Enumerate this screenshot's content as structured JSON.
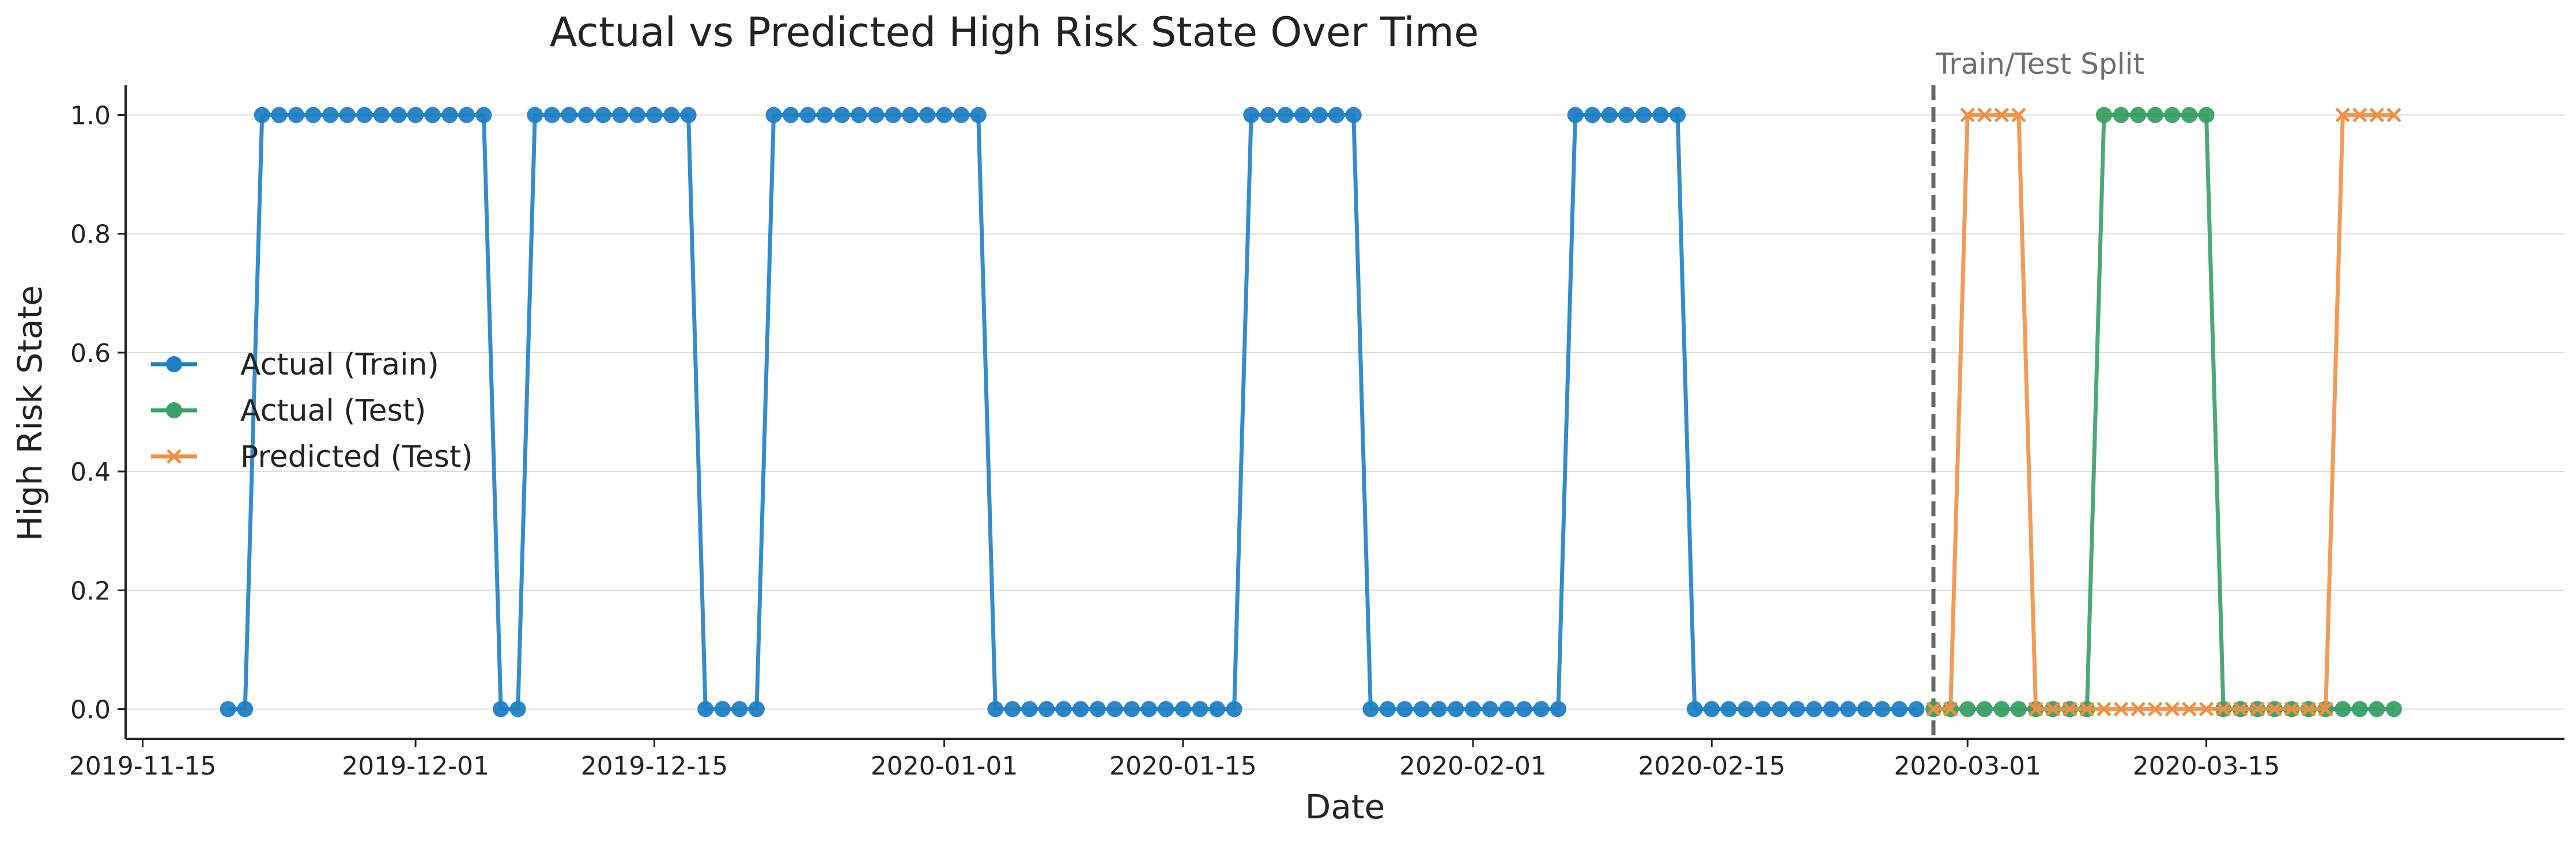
{
  "chart_data": {
    "type": "line",
    "title": "Actual vs Predicted High Risk State Over Time",
    "xlabel": "Date",
    "ylabel": "High Risk State",
    "xlim": [
      "2019-11-14",
      "2020-04-05"
    ],
    "ylim": [
      -0.05,
      1.05
    ],
    "x_ticks": [
      "2019-11-15",
      "2019-12-01",
      "2019-12-15",
      "2020-01-01",
      "2020-01-15",
      "2020-02-01",
      "2020-02-15",
      "2020-03-01",
      "2020-03-15"
    ],
    "y_ticks": [
      "0.0",
      "0.2",
      "0.4",
      "0.6",
      "0.8",
      "1.0"
    ],
    "grid": "horizontal",
    "legend_position": "left",
    "split": {
      "date": "2020-02-28",
      "label": "Train/Test Split"
    },
    "series": [
      {
        "name": "Actual (Train)",
        "color": "#1f7fc4",
        "marker": "circle",
        "start_date": "2019-11-20",
        "values": [
          0,
          0,
          1,
          1,
          1,
          1,
          1,
          1,
          1,
          1,
          1,
          1,
          1,
          1,
          1,
          1,
          0,
          0,
          1,
          1,
          1,
          1,
          1,
          1,
          1,
          1,
          1,
          1,
          0,
          0,
          0,
          0,
          1,
          1,
          1,
          1,
          1,
          1,
          1,
          1,
          1,
          1,
          1,
          1,
          1,
          0,
          0,
          0,
          0,
          0,
          0,
          0,
          0,
          0,
          0,
          0,
          0,
          0,
          0,
          0,
          1,
          1,
          1,
          1,
          1,
          1,
          1,
          0,
          0,
          0,
          0,
          0,
          0,
          0,
          0,
          0,
          0,
          0,
          0,
          1,
          1,
          1,
          1,
          1,
          1,
          1,
          0,
          0,
          0,
          0,
          0,
          0,
          0,
          0,
          0,
          0,
          0,
          0,
          0,
          0
        ]
      },
      {
        "name": "Actual (Test)",
        "color": "#3aa064",
        "marker": "circle",
        "start_date": "2020-02-28",
        "values": [
          0,
          0,
          0,
          0,
          0,
          0,
          0,
          0,
          0,
          0,
          1,
          1,
          1,
          1,
          1,
          1,
          1,
          0,
          0,
          0,
          0,
          0,
          0,
          0,
          0,
          0,
          0,
          0
        ]
      },
      {
        "name": "Predicted (Test)",
        "color": "#ee9044",
        "marker": "x",
        "start_date": "2020-02-28",
        "values": [
          0,
          0,
          1,
          1,
          1,
          1,
          0,
          0,
          0,
          0,
          0,
          0,
          0,
          0,
          0,
          0,
          0,
          0,
          0,
          0,
          0,
          0,
          0,
          0,
          1,
          1,
          1,
          1
        ]
      }
    ]
  }
}
